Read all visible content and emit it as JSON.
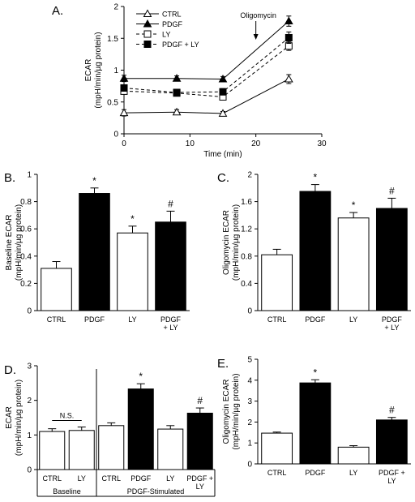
{
  "chart_data": [
    {
      "panel": "A.",
      "type": "line",
      "xlabel": "Time (min)",
      "ylabel": "ECAR",
      "ylabel2": "(mpH/min/µg protein)",
      "xlim": [
        0,
        30
      ],
      "ylim": [
        0,
        2
      ],
      "xticks": [
        0,
        10,
        20,
        30
      ],
      "yticks": [
        0,
        0.5,
        1,
        1.5,
        2
      ],
      "annotation": "Oligomycin",
      "annotation_x": 20,
      "legend_position": "top-left",
      "x": [
        0,
        8,
        15,
        25
      ],
      "series": [
        {
          "name": "CTRL",
          "marker": "triangle-open",
          "line": "solid",
          "values": [
            0.33,
            0.34,
            0.32,
            0.86
          ],
          "errors": [
            0.05,
            0.04,
            0.03,
            0.07
          ]
        },
        {
          "name": "PDGF",
          "marker": "triangle-filled",
          "line": "solid",
          "values": [
            0.87,
            0.87,
            0.86,
            1.77
          ],
          "errors": [
            0.05,
            0.04,
            0.04,
            0.08
          ]
        },
        {
          "name": "LY",
          "marker": "square-open",
          "line": "dashed",
          "values": [
            0.67,
            0.64,
            0.58,
            1.38
          ],
          "errors": [
            0.04,
            0.04,
            0.04,
            0.07
          ]
        },
        {
          "name": "PDGF + LY",
          "marker": "square-filled",
          "line": "dashed",
          "values": [
            0.72,
            0.65,
            0.66,
            1.51
          ],
          "errors": [
            0.05,
            0.04,
            0.05,
            0.09
          ]
        }
      ]
    },
    {
      "panel": "B.",
      "type": "bar",
      "ylabel": "Baseline ECAR",
      "ylabel2": "(mpH/min/µg protein)",
      "ylim": [
        0,
        1
      ],
      "yticks": [
        "0",
        "0.2",
        "0.4",
        "0.6",
        "0.8",
        "1"
      ],
      "categories": [
        "CTRL",
        "PDGF",
        "LY",
        "PDGF\n+ LY"
      ],
      "values": [
        0.31,
        0.86,
        0.57,
        0.65
      ],
      "errors": [
        0.05,
        0.04,
        0.05,
        0.08
      ],
      "fills": [
        "open",
        "filled",
        "open",
        "filled"
      ],
      "significance": [
        "",
        "*",
        "*",
        "#"
      ]
    },
    {
      "panel": "C.",
      "type": "bar",
      "ylabel": "Oligomycin ECAR",
      "ylabel2": "(mpH/min/µg protein)",
      "ylim": [
        0,
        2
      ],
      "yticks": [
        "0",
        "0.4",
        "0.8",
        "1.2",
        "1.6",
        "2"
      ],
      "categories": [
        "CTRL",
        "PDGF",
        "LY",
        "PDGF\n+ LY"
      ],
      "values": [
        0.82,
        1.75,
        1.36,
        1.5
      ],
      "errors": [
        0.08,
        0.1,
        0.08,
        0.15
      ],
      "fills": [
        "open",
        "filled",
        "open",
        "filled"
      ],
      "significance": [
        "",
        "*",
        "*",
        "#"
      ]
    },
    {
      "panel": "D.",
      "type": "bar",
      "ylabel": "ECAR",
      "ylabel2": "(mpH/min/µg protein)",
      "ylim": [
        0,
        3
      ],
      "yticks": [
        "0",
        "1",
        "2",
        "3"
      ],
      "categories": [
        "CTRL",
        "LY",
        "CTRL",
        "PDGF",
        "LY",
        "PDGF +\nLY"
      ],
      "values": [
        1.1,
        1.13,
        1.27,
        2.33,
        1.17,
        1.63
      ],
      "errors": [
        0.08,
        0.1,
        0.08,
        0.15,
        0.1,
        0.15
      ],
      "fills": [
        "open",
        "open",
        "open",
        "filled",
        "open",
        "filled"
      ],
      "significance": [
        "",
        "",
        "",
        "*",
        "",
        "#"
      ],
      "groups": [
        {
          "label": "Baseline",
          "range": [
            0,
            1
          ]
        },
        {
          "label": "PDGF-Stimulated",
          "range": [
            2,
            5
          ]
        }
      ],
      "ns_label": "N.S."
    },
    {
      "panel": "E.",
      "type": "bar",
      "ylabel": "Oligomycin ECAR",
      "ylabel2": "(mpH/min/µg protein)",
      "ylim": [
        0,
        5
      ],
      "yticks": [
        "0",
        "1",
        "2",
        "3",
        "4",
        "5"
      ],
      "categories": [
        "CTRL",
        "PDGF",
        "LY",
        "PDGF +\nLY"
      ],
      "values": [
        1.47,
        3.87,
        0.8,
        2.1
      ],
      "errors": [
        0.05,
        0.15,
        0.07,
        0.12
      ],
      "fills": [
        "open",
        "filled",
        "open",
        "filled"
      ],
      "significance": [
        "",
        "*",
        "",
        "#"
      ]
    }
  ]
}
